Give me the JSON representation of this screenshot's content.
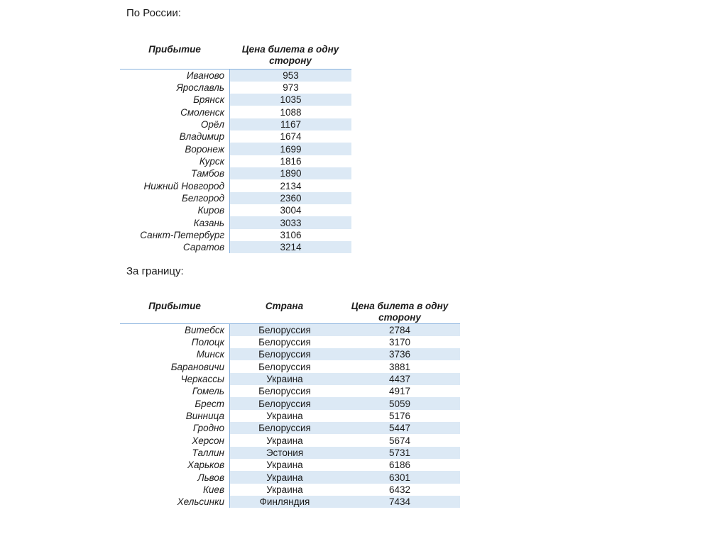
{
  "colors": {
    "band_fill": "#dce9f5",
    "table_border": "#88b2de",
    "text": "#1c1c1c",
    "page_background": "#ffffff"
  },
  "section_russia": {
    "title": "По России:",
    "headers": {
      "arrival": "Прибытие",
      "price": "Цена билета в одну сторону"
    },
    "rows": [
      {
        "city": "Иваново",
        "price": "953"
      },
      {
        "city": "Ярославль",
        "price": "973"
      },
      {
        "city": "Брянск",
        "price": "1035"
      },
      {
        "city": "Смоленск",
        "price": "1088"
      },
      {
        "city": "Орёл",
        "price": "1167"
      },
      {
        "city": "Владимир",
        "price": "1674"
      },
      {
        "city": "Воронеж",
        "price": "1699"
      },
      {
        "city": "Курск",
        "price": "1816"
      },
      {
        "city": "Тамбов",
        "price": "1890"
      },
      {
        "city": "Нижний Новгород",
        "price": "2134"
      },
      {
        "city": "Белгород",
        "price": "2360"
      },
      {
        "city": "Киров",
        "price": "3004"
      },
      {
        "city": "Казань",
        "price": "3033"
      },
      {
        "city": "Санкт-Петербург",
        "price": "3106"
      },
      {
        "city": "Саратов",
        "price": "3214"
      }
    ]
  },
  "section_abroad": {
    "title": "За границу:",
    "headers": {
      "arrival": "Прибытие",
      "country": "Страна",
      "price": "Цена билета в одну сторону"
    },
    "rows": [
      {
        "city": "Витебск",
        "country": "Белоруссия",
        "price": "2784"
      },
      {
        "city": "Полоцк",
        "country": "Белоруссия",
        "price": "3170"
      },
      {
        "city": "Минск",
        "country": "Белоруссия",
        "price": "3736"
      },
      {
        "city": "Барановичи",
        "country": "Белоруссия",
        "price": "3881"
      },
      {
        "city": "Черкассы",
        "country": "Украина",
        "price": "4437"
      },
      {
        "city": "Гомель",
        "country": "Белоруссия",
        "price": "4917"
      },
      {
        "city": "Брест",
        "country": "Белоруссия",
        "price": "5059"
      },
      {
        "city": "Винница",
        "country": "Украина",
        "price": "5176"
      },
      {
        "city": "Гродно",
        "country": "Белоруссия",
        "price": "5447"
      },
      {
        "city": "Херсон",
        "country": "Украина",
        "price": "5674"
      },
      {
        "city": "Таллин",
        "country": "Эстония",
        "price": "5731"
      },
      {
        "city": "Харьков",
        "country": "Украина",
        "price": "6186"
      },
      {
        "city": "Львов",
        "country": "Украина",
        "price": "6301"
      },
      {
        "city": "Киев",
        "country": "Украина",
        "price": "6432"
      },
      {
        "city": "Хельсинки",
        "country": "Финляндия",
        "price": "7434"
      }
    ]
  }
}
